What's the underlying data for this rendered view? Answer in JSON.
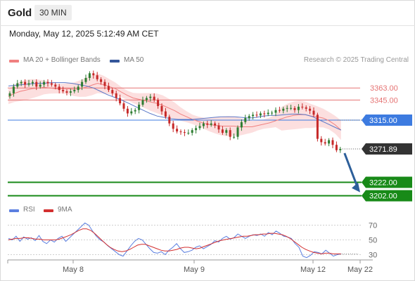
{
  "header": {
    "instrument": "Gold",
    "timeframe": "30 MIN"
  },
  "timestamp": "Monday, May 12, 2025 5:12:49 AM CET",
  "legend": {
    "ma20": "MA 20 + Bollinger Bands",
    "ma50": "MA 50",
    "credit": "Research © 2025 Trading Central",
    "rsi": "RSI",
    "ma9": "9MA"
  },
  "colors": {
    "ma20": "#f08080",
    "bollinger_fill": "#fcdcdc",
    "ma50": "#5a78c8",
    "candle_up": "#2e7d32",
    "candle_down": "#c62828",
    "resistance": "#e57373",
    "pivot": "#3d7be0",
    "support": "#188a18",
    "rsi": "#5b7fe0",
    "rsi_ma": "#d32f2f",
    "arrow": "#2d5f9a"
  },
  "chart_data": [
    {
      "type": "candlestick",
      "title": "Gold",
      "timeframe": "30 MIN",
      "x_ticks": [
        "May 8",
        "May 9",
        "May 12",
        "May 22"
      ],
      "y_range": [
        3190,
        3400
      ],
      "grid": false,
      "legend_position": "top-left",
      "levels": [
        {
          "label": "3363.00",
          "value": 3363,
          "role": "resistance"
        },
        {
          "label": "3345.00",
          "value": 3345,
          "role": "resistance"
        },
        {
          "label": "3315.00",
          "value": 3315,
          "role": "pivot"
        },
        {
          "label": "3271.89",
          "value": 3271.89,
          "role": "last"
        },
        {
          "label": "3222.00",
          "value": 3222,
          "role": "support"
        },
        {
          "label": "3202.00",
          "value": 3202,
          "role": "support"
        }
      ],
      "close_series": [
        3355,
        3365,
        3370,
        3372,
        3368,
        3370,
        3372,
        3365,
        3368,
        3372,
        3370,
        3368,
        3365,
        3360,
        3358,
        3356,
        3358,
        3360,
        3365,
        3372,
        3378,
        3385,
        3382,
        3376,
        3372,
        3366,
        3360,
        3355,
        3348,
        3340,
        3332,
        3325,
        3328,
        3330,
        3338,
        3345,
        3348,
        3350,
        3345,
        3336,
        3328,
        3320,
        3310,
        3302,
        3298,
        3297,
        3296,
        3296,
        3300,
        3303,
        3306,
        3310,
        3308,
        3310,
        3307,
        3301,
        3296,
        3300,
        3290,
        3290,
        3304,
        3312,
        3318,
        3321,
        3323,
        3322,
        3325,
        3324,
        3326,
        3326,
        3330,
        3329,
        3332,
        3333,
        3333,
        3330,
        3335,
        3334,
        3332,
        3329,
        3323,
        3287,
        3282,
        3280,
        3285,
        3278,
        3270,
        3272
      ],
      "ma20_series": [
        3350,
        3355,
        3358,
        3360,
        3362,
        3363,
        3364,
        3363,
        3362,
        3362,
        3362,
        3361,
        3362,
        3364,
        3367,
        3370,
        3368,
        3365,
        3362,
        3357,
        3352,
        3348,
        3346,
        3344,
        3342,
        3340,
        3337,
        3333,
        3329,
        3324,
        3320,
        3316,
        3313,
        3310,
        3308,
        3307,
        3306,
        3306,
        3306,
        3305,
        3305,
        3305,
        3307,
        3309,
        3311,
        3314,
        3317,
        3320,
        3322,
        3323,
        3323,
        3321,
        3320,
        3318,
        3314,
        3308,
        3300
      ],
      "ma50_series": [
        3366,
        3367,
        3368,
        3369,
        3370,
        3370,
        3371,
        3371,
        3371,
        3370,
        3368,
        3366,
        3363,
        3358,
        3353,
        3349,
        3345,
        3340,
        3335,
        3330,
        3325,
        3321,
        3319,
        3317,
        3316,
        3316,
        3316,
        3317,
        3318,
        3319,
        3320,
        3320,
        3320,
        3319,
        3318,
        3319,
        3321,
        3322,
        3322,
        3323,
        3324,
        3324,
        3323,
        3320,
        3315,
        3310,
        3305,
        3300
      ],
      "forecast": {
        "from": 3271.89,
        "to": 3207
      }
    },
    {
      "type": "line",
      "title": "RSI",
      "y_ticks": [
        "70",
        "50",
        "30"
      ],
      "y_range": [
        20,
        80
      ],
      "series": [
        {
          "name": "RSI",
          "values": [
            52,
            50,
            55,
            48,
            54,
            51,
            53,
            49,
            56,
            48,
            45,
            50,
            47,
            52,
            55,
            48,
            53,
            58,
            63,
            68,
            73,
            70,
            62,
            55,
            50,
            47,
            42,
            38,
            34,
            30,
            28,
            35,
            42,
            48,
            52,
            50,
            44,
            38,
            33,
            32,
            34,
            30,
            36,
            40,
            45,
            38,
            33,
            34,
            36,
            40,
            42,
            38,
            41,
            44,
            49,
            47,
            52,
            55,
            51,
            53,
            58,
            55,
            52,
            55,
            57,
            56,
            58,
            55,
            60,
            57,
            62,
            59,
            55,
            54,
            52,
            45,
            40,
            28,
            26,
            29,
            34,
            33,
            31,
            36,
            32,
            28,
            30,
            31
          ]
        },
        {
          "name": "9MA",
          "values": [
            50,
            51,
            52,
            52,
            53,
            53,
            52,
            51,
            51,
            50,
            50,
            50,
            50,
            51,
            53,
            55,
            57,
            60,
            63,
            65,
            65,
            63,
            59,
            54,
            49,
            44,
            40,
            37,
            35,
            34,
            35,
            37,
            40,
            43,
            44,
            44,
            42,
            40,
            38,
            36,
            35,
            35,
            36,
            37,
            39,
            40,
            40,
            39,
            38,
            39,
            41,
            43,
            45,
            47,
            49,
            50,
            51,
            52,
            53,
            54,
            55,
            55,
            56,
            57,
            57,
            58,
            58,
            59,
            59,
            58,
            57,
            55,
            52,
            48,
            44,
            40,
            37,
            35,
            33,
            32,
            31,
            32,
            32,
            31,
            31,
            31
          ]
        }
      ]
    }
  ]
}
